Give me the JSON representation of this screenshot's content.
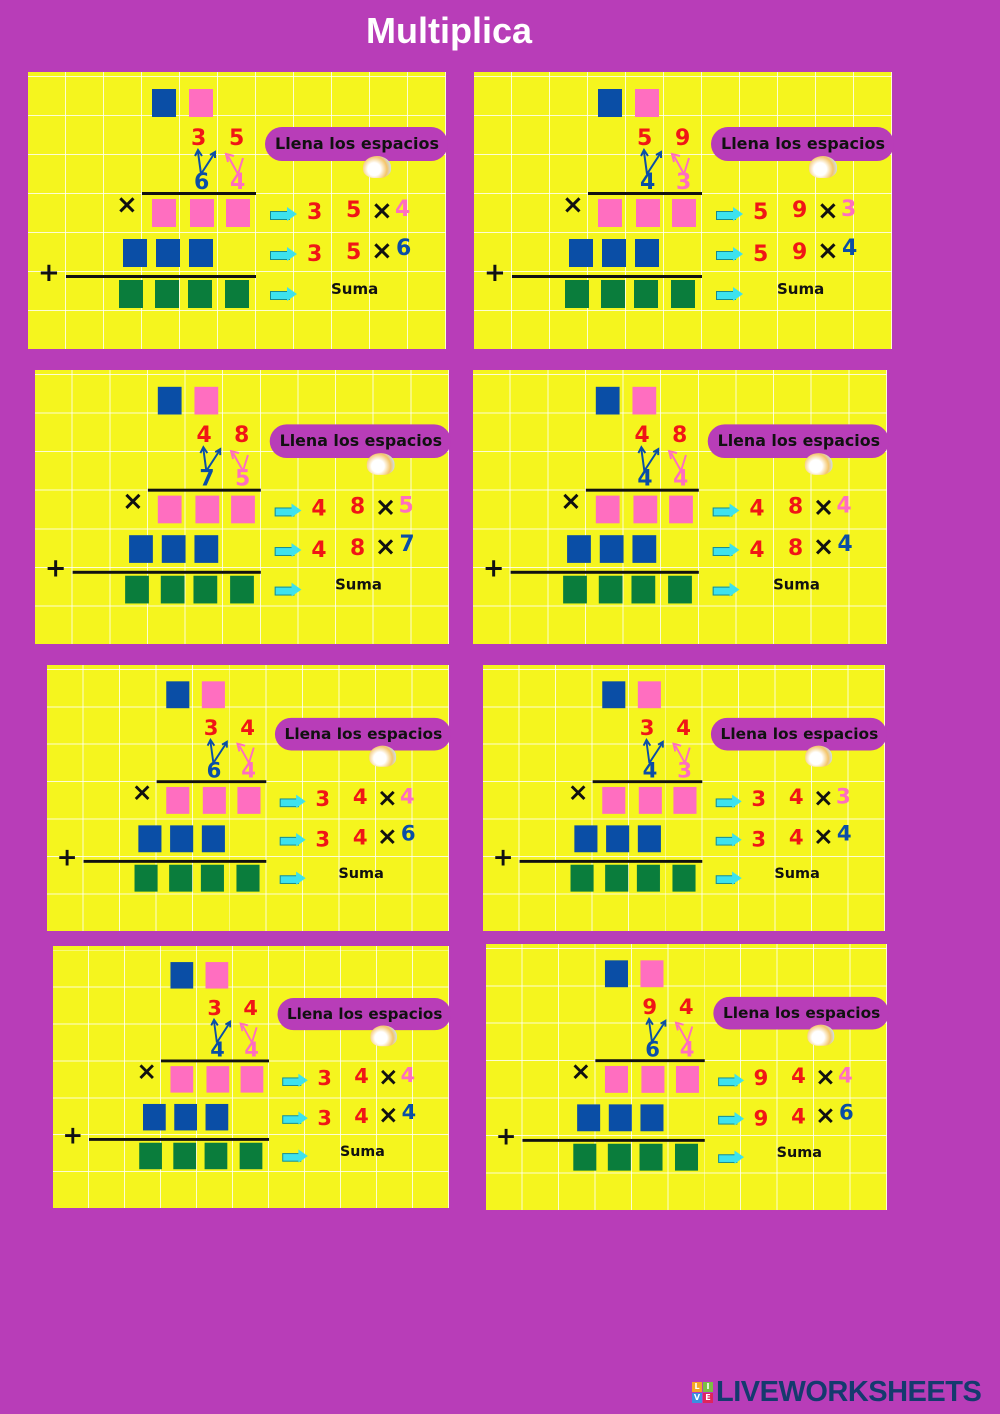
{
  "title": "Multiplica",
  "pill_label": "Llena los espacios",
  "sum_label": "Suma",
  "times_symbol": "×",
  "plus_symbol": "+",
  "colors": {
    "background": "#b83db8",
    "panel": "#f5f51e",
    "blue": "#0a4ea6",
    "pink": "#ff6ec0",
    "green": "#0a7d3c",
    "red": "#f01616"
  },
  "panels": [
    {
      "top": [
        "3",
        "5"
      ],
      "bottom": [
        "6",
        "4"
      ]
    },
    {
      "top": [
        "5",
        "9"
      ],
      "bottom": [
        "4",
        "3"
      ]
    },
    {
      "top": [
        "4",
        "8"
      ],
      "bottom": [
        "7",
        "5"
      ]
    },
    {
      "top": [
        "4",
        "8"
      ],
      "bottom": [
        "4",
        "4"
      ]
    },
    {
      "top": [
        "3",
        "4"
      ],
      "bottom": [
        "6",
        "4"
      ]
    },
    {
      "top": [
        "3",
        "4"
      ],
      "bottom": [
        "4",
        "3"
      ]
    },
    {
      "top": [
        "3",
        "4"
      ],
      "bottom": [
        "4",
        "4"
      ]
    },
    {
      "top": [
        "9",
        "4"
      ],
      "bottom": [
        "6",
        "4"
      ]
    }
  ],
  "logo": {
    "text": "LIVEWORKSHEETS",
    "tiles": [
      "L",
      "I",
      "V",
      "E"
    ]
  }
}
